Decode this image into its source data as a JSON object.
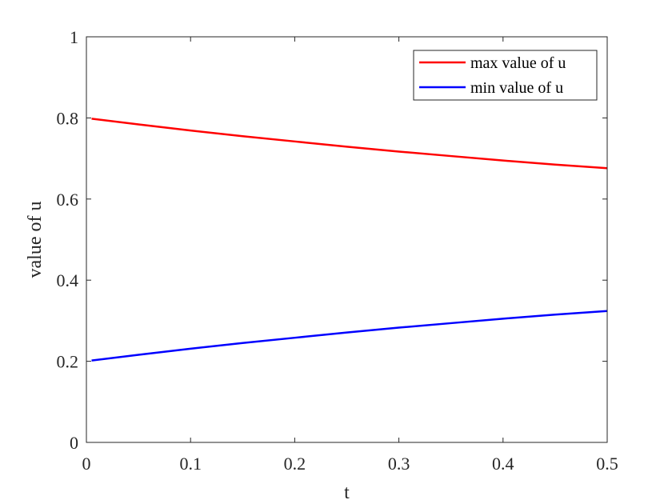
{
  "chart_data": {
    "type": "line",
    "title": "",
    "xlabel": "t",
    "ylabel": "value of u",
    "xlim": [
      0,
      0.5
    ],
    "ylim": [
      0,
      1
    ],
    "xticks": [
      0,
      0.1,
      0.2,
      0.3,
      0.4,
      0.5
    ],
    "xtick_labels": [
      "0",
      "0.1",
      "0.2",
      "0.3",
      "0.4",
      "0.5"
    ],
    "yticks": [
      0,
      0.2,
      0.4,
      0.6,
      0.8,
      1
    ],
    "ytick_labels": [
      "0",
      "0.2",
      "0.4",
      "0.6",
      "0.8",
      "1"
    ],
    "grid": false,
    "legend_position": "top-right",
    "series": [
      {
        "name": "max value of u",
        "color": "#ff0000",
        "x": [
          0.005,
          0.05,
          0.1,
          0.15,
          0.2,
          0.25,
          0.3,
          0.35,
          0.4,
          0.45,
          0.5
        ],
        "y": [
          0.798,
          0.784,
          0.769,
          0.755,
          0.742,
          0.729,
          0.717,
          0.706,
          0.695,
          0.685,
          0.676
        ]
      },
      {
        "name": "min value of u",
        "color": "#0000ff",
        "x": [
          0.005,
          0.05,
          0.1,
          0.15,
          0.2,
          0.25,
          0.3,
          0.35,
          0.4,
          0.45,
          0.5
        ],
        "y": [
          0.202,
          0.216,
          0.231,
          0.245,
          0.258,
          0.271,
          0.283,
          0.294,
          0.305,
          0.315,
          0.324
        ]
      }
    ]
  }
}
